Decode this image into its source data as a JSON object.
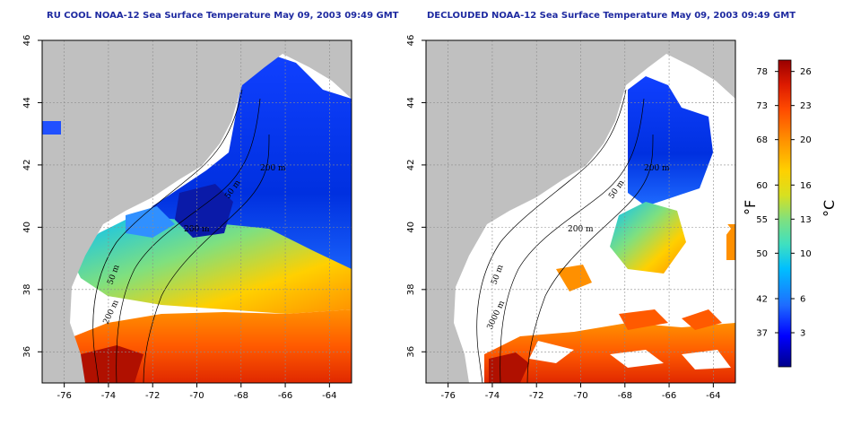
{
  "maps": [
    {
      "title": "RU COOL NOAA-12 Sea Surface Temperature May 09, 2003 09:49 GMT",
      "contour_labels": [
        "200 m",
        "50 m",
        "200 m",
        "50 m",
        "200 m"
      ]
    },
    {
      "title": "DECLOUDED NOAA-12 Sea Surface Temperature May 09, 2003 09:49 GMT",
      "contour_labels": [
        "200 m",
        "50 m",
        "200 m",
        "50 m",
        "3000 m"
      ]
    }
  ],
  "axes": {
    "lat_ticks": [
      "36",
      "38",
      "40",
      "42",
      "44",
      "46"
    ],
    "lon_ticks": [
      "-76",
      "-74",
      "-72",
      "-70",
      "-68",
      "-66",
      "-64"
    ],
    "lat_range": [
      35,
      46
    ],
    "lon_range": [
      -77,
      -63
    ],
    "grid": "dotted"
  },
  "colorbar": {
    "fahrenheit_label": "°F",
    "celsius_label": "°C",
    "fahrenheit_ticks": [
      "78",
      "73",
      "68",
      "60",
      "55",
      "50",
      "42",
      "37"
    ],
    "celsius_ticks": [
      "26",
      "23",
      "20",
      "16",
      "13",
      "10",
      "6",
      "3"
    ],
    "celsius_values": [
      26,
      23,
      20,
      16,
      13,
      10,
      6,
      3
    ],
    "range_c": [
      0,
      27
    ],
    "colors": [
      "#00008b",
      "#0000ff",
      "#1e6bff",
      "#00bfff",
      "#3fe0c0",
      "#7fe07f",
      "#d8e020",
      "#ffd000",
      "#ff9000",
      "#ff4a00",
      "#dd1a00",
      "#9a0000"
    ]
  },
  "colors": {
    "land": "#c0c0c0",
    "no_data": "#ffffff",
    "title": "#1e2aa0"
  }
}
